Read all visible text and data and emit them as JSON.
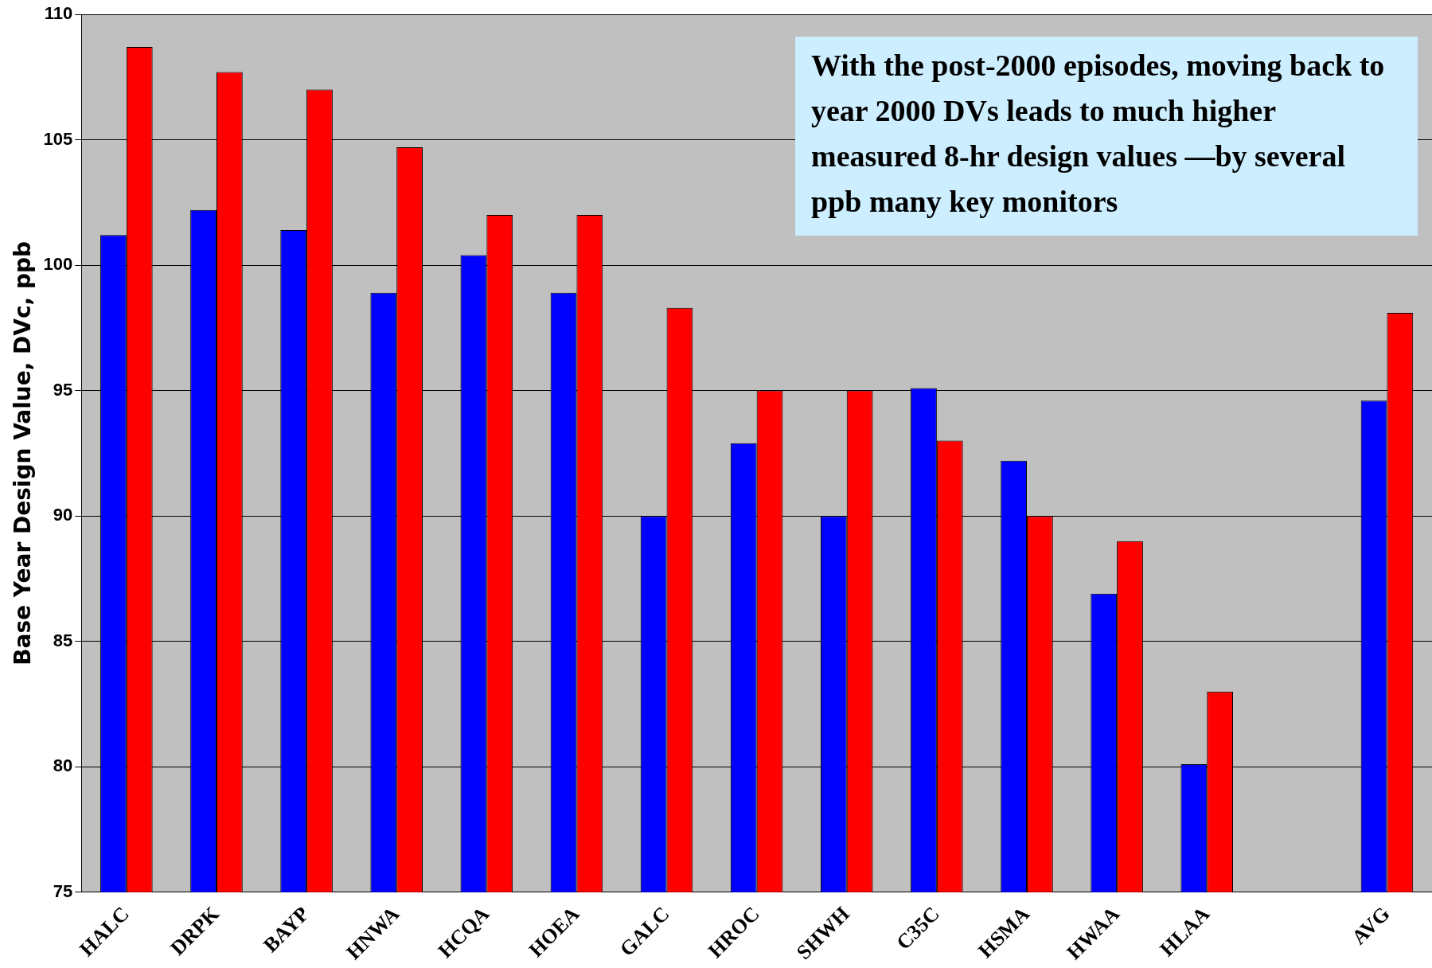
{
  "chart_data": {
    "type": "bar",
    "ylabel": "Base Year Design Value, DVc, ppb",
    "categories": [
      "HALC",
      "DRPK",
      "BAYP",
      "HNWA",
      "HCQA",
      "HOEA",
      "GALC",
      "HROC",
      "SHWH",
      "C35C",
      "HSMA",
      "HWAA",
      "HLAA",
      null,
      "AVG"
    ],
    "series": [
      {
        "color": "#0000ff",
        "values": [
          101.2,
          102.2,
          101.4,
          98.9,
          100.4,
          98.9,
          90,
          92.9,
          90,
          95.1,
          92.2,
          86.9,
          80.1,
          null,
          94.6
        ]
      },
      {
        "color": "#ff0000",
        "values": [
          108.7,
          107.7,
          107.0,
          104.7,
          102.0,
          102.0,
          98.3,
          95,
          95,
          93.0,
          90,
          89.0,
          83,
          null,
          98.1
        ]
      }
    ],
    "ylim": [
      75,
      110
    ],
    "yticks": [
      75,
      80,
      85,
      90,
      95,
      100,
      105,
      110
    ],
    "grid": "y",
    "legend": false,
    "annotations": [
      "With the post-2000 episodes, moving back to year 2000 DVs leads to much higher measured 8-hr design values —by several ppb many key monitors"
    ]
  }
}
